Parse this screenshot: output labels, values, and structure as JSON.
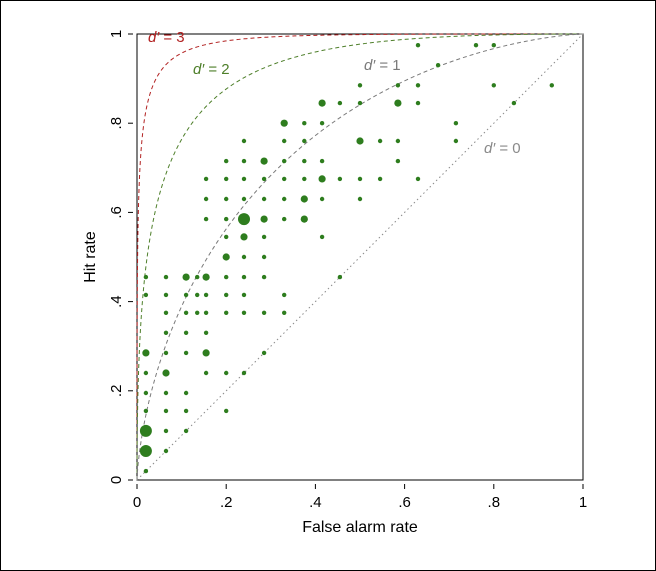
{
  "chart_data": {
    "type": "scatter",
    "title": "",
    "xlabel": "False alarm rate",
    "ylabel": "Hit rate",
    "xlim": [
      0,
      1
    ],
    "ylim": [
      0,
      1
    ],
    "x_ticks": [
      "0",
      ".2",
      ".4",
      ".6",
      ".8",
      "1"
    ],
    "y_ticks": [
      "0",
      ".2",
      ".4",
      ".6",
      ".8",
      "1"
    ],
    "grid": false,
    "colors": {
      "points": "#2e7d1e",
      "d3": "#b22222",
      "d2": "#5a7f3a",
      "d1": "#7a7a7a",
      "d0": "#9a9a9a"
    },
    "curves": [
      {
        "d": 3,
        "label_prefix": "d′",
        "label_value": " = 3",
        "color": "#b22222"
      },
      {
        "d": 2,
        "label_prefix": "d′",
        "label_value": " = 2",
        "color": "#4e7f2a"
      },
      {
        "d": 1,
        "label_prefix": "d′",
        "label_value": " = 1",
        "color": "#7a7a7a"
      },
      {
        "d": 0,
        "label_prefix": "d′",
        "label_value": " = 0",
        "color": "#8a8a8a"
      }
    ],
    "points": [
      [
        0.02,
        0.02,
        1
      ],
      [
        0.02,
        0.065,
        3
      ],
      [
        0.02,
        0.11,
        3
      ],
      [
        0.02,
        0.155,
        1
      ],
      [
        0.02,
        0.195,
        1
      ],
      [
        0.02,
        0.24,
        1
      ],
      [
        0.02,
        0.285,
        2
      ],
      [
        0.02,
        0.415,
        1
      ],
      [
        0.02,
        0.455,
        1
      ],
      [
        0.065,
        0.065,
        1
      ],
      [
        0.065,
        0.11,
        1
      ],
      [
        0.065,
        0.155,
        1
      ],
      [
        0.065,
        0.195,
        1
      ],
      [
        0.065,
        0.24,
        2
      ],
      [
        0.065,
        0.285,
        1
      ],
      [
        0.065,
        0.33,
        1
      ],
      [
        0.065,
        0.375,
        1
      ],
      [
        0.065,
        0.415,
        1
      ],
      [
        0.065,
        0.455,
        1
      ],
      [
        0.11,
        0.11,
        1
      ],
      [
        0.11,
        0.155,
        1
      ],
      [
        0.11,
        0.195,
        1
      ],
      [
        0.11,
        0.285,
        1
      ],
      [
        0.11,
        0.33,
        1
      ],
      [
        0.11,
        0.375,
        1
      ],
      [
        0.11,
        0.415,
        1
      ],
      [
        0.11,
        0.455,
        2
      ],
      [
        0.135,
        0.375,
        1
      ],
      [
        0.135,
        0.415,
        1
      ],
      [
        0.135,
        0.455,
        1
      ],
      [
        0.155,
        0.24,
        1
      ],
      [
        0.155,
        0.285,
        2
      ],
      [
        0.155,
        0.33,
        1
      ],
      [
        0.155,
        0.375,
        1
      ],
      [
        0.155,
        0.415,
        1
      ],
      [
        0.155,
        0.455,
        2
      ],
      [
        0.155,
        0.585,
        1
      ],
      [
        0.155,
        0.63,
        1
      ],
      [
        0.155,
        0.675,
        1
      ],
      [
        0.2,
        0.155,
        1
      ],
      [
        0.2,
        0.24,
        1
      ],
      [
        0.2,
        0.375,
        1
      ],
      [
        0.2,
        0.415,
        1
      ],
      [
        0.2,
        0.455,
        1
      ],
      [
        0.2,
        0.5,
        2
      ],
      [
        0.2,
        0.545,
        1
      ],
      [
        0.2,
        0.585,
        1
      ],
      [
        0.2,
        0.63,
        1
      ],
      [
        0.2,
        0.675,
        1
      ],
      [
        0.2,
        0.715,
        1
      ],
      [
        0.24,
        0.24,
        1
      ],
      [
        0.24,
        0.375,
        1
      ],
      [
        0.24,
        0.415,
        1
      ],
      [
        0.24,
        0.455,
        1
      ],
      [
        0.24,
        0.5,
        1
      ],
      [
        0.24,
        0.545,
        2
      ],
      [
        0.24,
        0.585,
        3
      ],
      [
        0.24,
        0.63,
        1
      ],
      [
        0.24,
        0.675,
        1
      ],
      [
        0.24,
        0.715,
        1
      ],
      [
        0.24,
        0.76,
        1
      ],
      [
        0.285,
        0.285,
        1
      ],
      [
        0.285,
        0.375,
        1
      ],
      [
        0.285,
        0.455,
        1
      ],
      [
        0.285,
        0.5,
        1
      ],
      [
        0.285,
        0.545,
        1
      ],
      [
        0.285,
        0.585,
        2
      ],
      [
        0.285,
        0.63,
        1
      ],
      [
        0.285,
        0.675,
        1
      ],
      [
        0.285,
        0.715,
        2
      ],
      [
        0.33,
        0.375,
        1
      ],
      [
        0.33,
        0.415,
        1
      ],
      [
        0.33,
        0.585,
        1
      ],
      [
        0.33,
        0.63,
        1
      ],
      [
        0.33,
        0.675,
        1
      ],
      [
        0.33,
        0.715,
        1
      ],
      [
        0.33,
        0.76,
        1
      ],
      [
        0.33,
        0.8,
        2
      ],
      [
        0.375,
        0.585,
        2
      ],
      [
        0.375,
        0.63,
        2
      ],
      [
        0.375,
        0.675,
        1
      ],
      [
        0.375,
        0.715,
        1
      ],
      [
        0.375,
        0.76,
        1
      ],
      [
        0.375,
        0.8,
        1
      ],
      [
        0.415,
        0.545,
        1
      ],
      [
        0.415,
        0.63,
        1
      ],
      [
        0.415,
        0.675,
        2
      ],
      [
        0.415,
        0.715,
        1
      ],
      [
        0.415,
        0.8,
        1
      ],
      [
        0.415,
        0.845,
        2
      ],
      [
        0.455,
        0.455,
        1
      ],
      [
        0.455,
        0.675,
        1
      ],
      [
        0.455,
        0.845,
        1
      ],
      [
        0.5,
        0.63,
        1
      ],
      [
        0.5,
        0.675,
        1
      ],
      [
        0.5,
        0.76,
        2
      ],
      [
        0.5,
        0.845,
        1
      ],
      [
        0.5,
        0.885,
        1
      ],
      [
        0.545,
        0.675,
        1
      ],
      [
        0.545,
        0.76,
        1
      ],
      [
        0.585,
        0.715,
        1
      ],
      [
        0.585,
        0.76,
        1
      ],
      [
        0.585,
        0.845,
        2
      ],
      [
        0.585,
        0.885,
        1
      ],
      [
        0.63,
        0.675,
        1
      ],
      [
        0.63,
        0.845,
        1
      ],
      [
        0.63,
        0.885,
        1
      ],
      [
        0.63,
        0.975,
        1
      ],
      [
        0.675,
        0.93,
        1
      ],
      [
        0.715,
        0.76,
        1
      ],
      [
        0.715,
        0.8,
        1
      ],
      [
        0.76,
        0.975,
        1
      ],
      [
        0.8,
        0.885,
        1
      ],
      [
        0.8,
        0.975,
        1
      ],
      [
        0.845,
        0.845,
        1
      ],
      [
        0.93,
        0.885,
        1
      ]
    ]
  }
}
